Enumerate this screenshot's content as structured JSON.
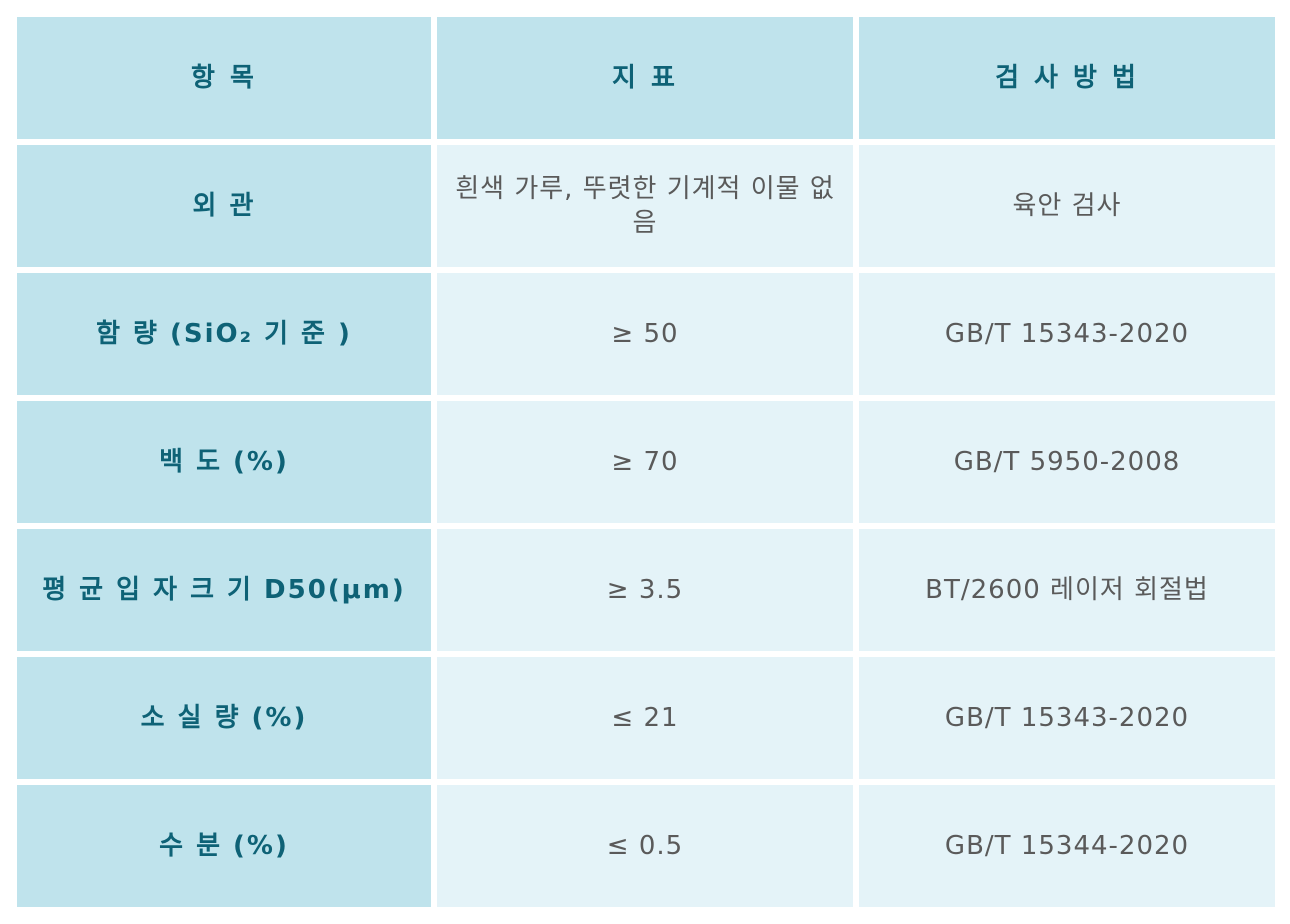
{
  "table": {
    "headers": [
      "항 목",
      "지 표",
      "검 사 방 법"
    ],
    "rows": [
      [
        "외 관",
        "흰색 가루, 뚜렷한 기계적 이물 없음",
        "육안 검사"
      ],
      [
        "함 량 (SiO₂ 기 준 )",
        "≥ 50",
        "GB/T 15343-2020"
      ],
      [
        "백 도 (%)",
        "≥ 70",
        "GB/T 5950-2008"
      ],
      [
        "평 균 입 자 크 기 D50(μm)",
        "≥ 3.5",
        "BT/2600 레이저 회절법"
      ],
      [
        "소 실 량 (%)",
        "≤ 21",
        "GB/T 15343-2020"
      ],
      [
        "수 분 (%)",
        "≤ 0.5",
        "GB/T 15344-2020"
      ]
    ]
  },
  "colors": {
    "header_bg": "#bfe3ec",
    "header_text": "#0e6276",
    "cell_bg": "#e4f3f8",
    "cell_text": "#5a5a5a"
  }
}
